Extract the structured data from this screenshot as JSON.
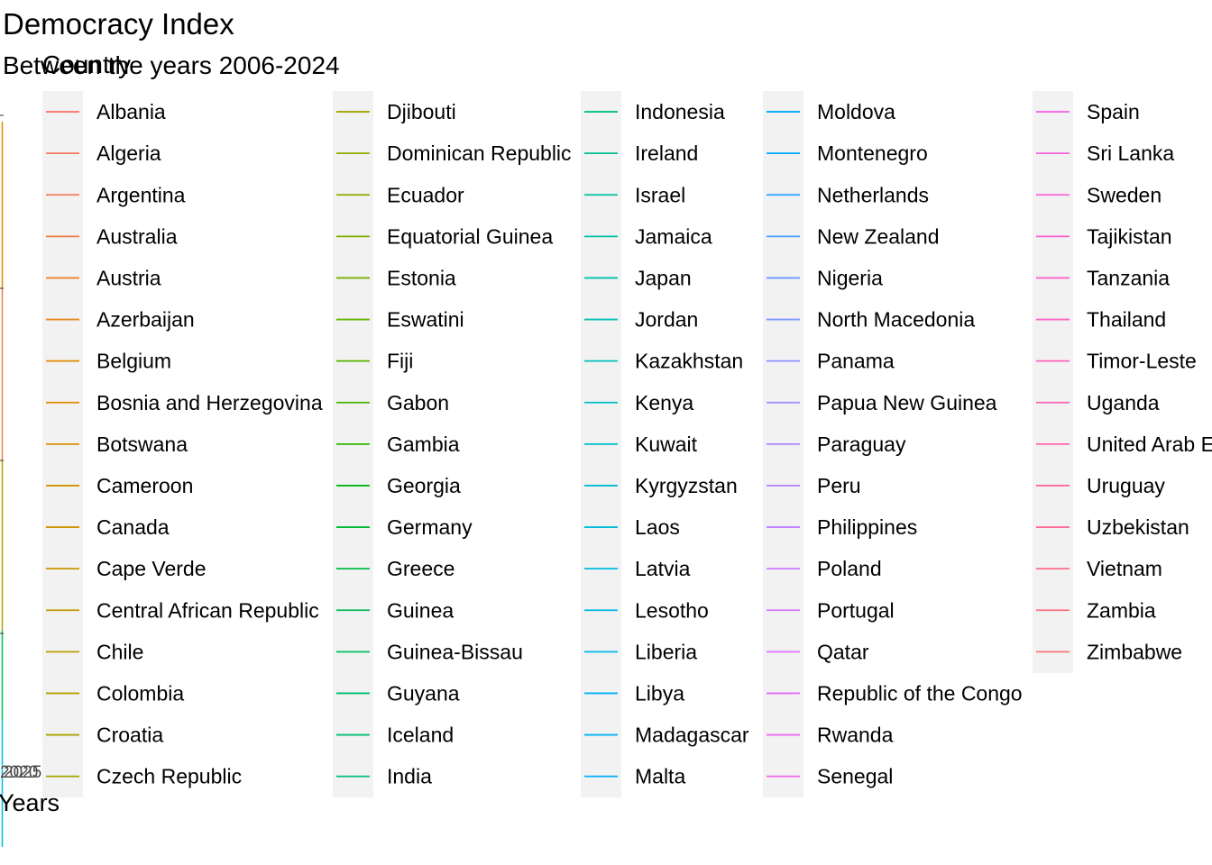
{
  "chart_data": {
    "type": "line",
    "title": "Democracy Index",
    "subtitle": "Between the years 2006-2024",
    "xlabel": "Years",
    "ylabel": "",
    "xlim": [
      2006,
      2024
    ],
    "legend": {
      "title": "Country",
      "placement": "right",
      "columns": 5,
      "rows_per_column": 17
    },
    "x_tick_labels_visible": [
      "2020",
      "2025"
    ],
    "series": [
      {
        "name": "Albania"
      },
      {
        "name": "Algeria"
      },
      {
        "name": "Argentina"
      },
      {
        "name": "Australia"
      },
      {
        "name": "Austria"
      },
      {
        "name": "Azerbaijan"
      },
      {
        "name": "Belgium"
      },
      {
        "name": "Bosnia and Herzegovina"
      },
      {
        "name": "Botswana"
      },
      {
        "name": "Cameroon"
      },
      {
        "name": "Canada"
      },
      {
        "name": "Cape Verde"
      },
      {
        "name": "Central African Republic"
      },
      {
        "name": "Chile"
      },
      {
        "name": "Colombia"
      },
      {
        "name": "Croatia"
      },
      {
        "name": "Czech Republic"
      },
      {
        "name": "Djibouti"
      },
      {
        "name": "Dominican Republic"
      },
      {
        "name": "Ecuador"
      },
      {
        "name": "Equatorial Guinea"
      },
      {
        "name": "Estonia"
      },
      {
        "name": "Eswatini"
      },
      {
        "name": "Fiji"
      },
      {
        "name": "Gabon"
      },
      {
        "name": "Gambia"
      },
      {
        "name": "Georgia"
      },
      {
        "name": "Germany"
      },
      {
        "name": "Greece"
      },
      {
        "name": "Guinea"
      },
      {
        "name": "Guinea-Bissau"
      },
      {
        "name": "Guyana"
      },
      {
        "name": "Iceland"
      },
      {
        "name": "India"
      },
      {
        "name": "Indonesia"
      },
      {
        "name": "Ireland"
      },
      {
        "name": "Israel"
      },
      {
        "name": "Jamaica"
      },
      {
        "name": "Japan"
      },
      {
        "name": "Jordan"
      },
      {
        "name": "Kazakhstan"
      },
      {
        "name": "Kenya"
      },
      {
        "name": "Kuwait"
      },
      {
        "name": "Kyrgyzstan"
      },
      {
        "name": "Laos"
      },
      {
        "name": "Latvia"
      },
      {
        "name": "Lesotho"
      },
      {
        "name": "Liberia"
      },
      {
        "name": "Libya"
      },
      {
        "name": "Madagascar"
      },
      {
        "name": "Malta"
      },
      {
        "name": "Moldova"
      },
      {
        "name": "Montenegro"
      },
      {
        "name": "Netherlands"
      },
      {
        "name": "New Zealand"
      },
      {
        "name": "Nigeria"
      },
      {
        "name": "North Macedonia"
      },
      {
        "name": "Panama"
      },
      {
        "name": "Papua New Guinea"
      },
      {
        "name": "Paraguay"
      },
      {
        "name": "Peru"
      },
      {
        "name": "Philippines"
      },
      {
        "name": "Poland"
      },
      {
        "name": "Portugal"
      },
      {
        "name": "Qatar"
      },
      {
        "name": "Republic of the Congo"
      },
      {
        "name": "Rwanda"
      },
      {
        "name": "Senegal"
      },
      {
        "name": "Spain"
      },
      {
        "name": "Sri Lanka"
      },
      {
        "name": "Sweden"
      },
      {
        "name": "Tajikistan"
      },
      {
        "name": "Tanzania"
      },
      {
        "name": "Thailand"
      },
      {
        "name": "Timor-Leste"
      },
      {
        "name": "Uganda"
      },
      {
        "name": "United Arab Emirates"
      },
      {
        "name": "Uruguay"
      },
      {
        "name": "Uzbekistan"
      },
      {
        "name": "Vietnam"
      },
      {
        "name": "Zambia"
      },
      {
        "name": "Zimbabwe"
      }
    ],
    "grid": false
  }
}
